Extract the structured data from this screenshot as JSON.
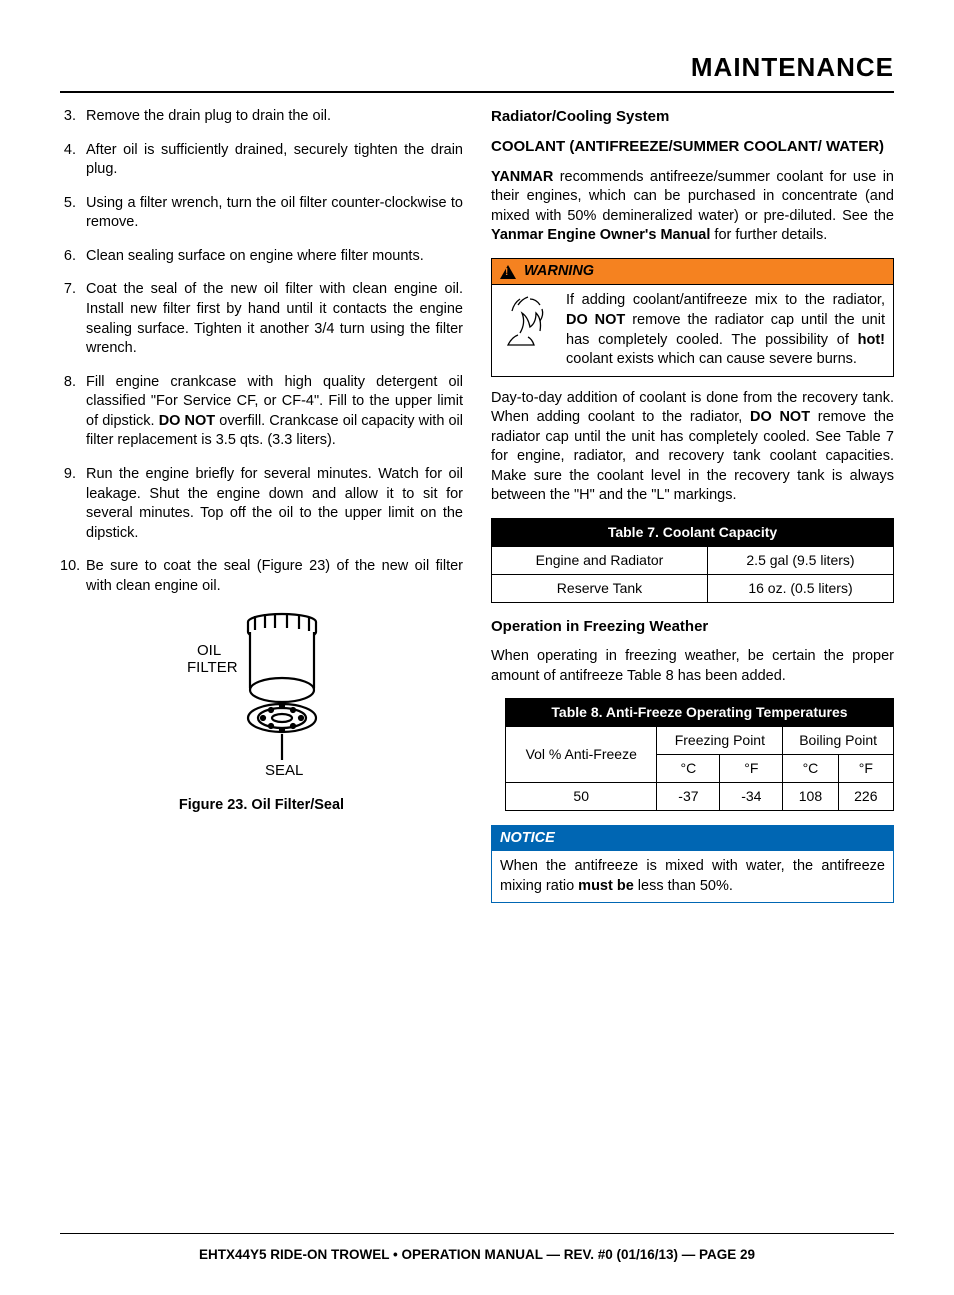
{
  "header": {
    "title": "MAINTENANCE"
  },
  "left": {
    "list_start": 3,
    "steps": [
      "Remove the drain plug to drain the oil.",
      "After oil is sufficiently drained, securely tighten the drain plug.",
      "Using a filter wrench, turn the oil filter counter-clockwise to remove.",
      "Clean sealing surface on engine where filter mounts.",
      "Coat the seal of the new oil filter with clean engine oil. Install new filter first by hand until it contacts the engine sealing surface. Tighten it another 3/4 turn using the filter wrench.",
      {
        "pre": "Fill engine crankcase with high quality detergent oil classified \"For Service CF, or CF-4\". Fill to the upper limit of dipstick. ",
        "bold": "DO NOT",
        "post": " overfill. Crankcase oil capacity with oil filter replacement is 3.5 qts. (3.3 liters)."
      },
      "Run the engine briefly for several minutes. Watch for oil leakage. Shut the engine down and allow it to sit for several minutes. Top off the oil to the upper limit on the dipstick.",
      "Be sure to coat the seal (Figure 23) of the new oil filter with clean engine oil."
    ],
    "figure": {
      "label_top": "OIL\nFILTER",
      "label_bottom": "SEAL",
      "caption": "Figure 23. Oil Filter/Seal"
    }
  },
  "right": {
    "h_radiator": "Radiator/Cooling System",
    "h_coolant": "COOLANT (ANTIFREEZE/SUMMER COOLANT/ WATER)",
    "p1_brandbold": "YANMAR",
    "p1_post": " recommends antifreeze/summer coolant for use in their engines, which can be purchased in concentrate (and mixed with 50% demineralized water) or pre-diluted. See the ",
    "p1_manualbold": "Yanmar Engine Owner's Manual",
    "p1_tail": " for further details.",
    "warning": {
      "label": "WARNING",
      "pre": "If adding coolant/antifreeze mix to the radiator, ",
      "b1": "DO NOT",
      "mid": " remove the radiator cap until the unit has completely cooled. The possibility of ",
      "b2": "hot!",
      "post": " coolant exists which can cause severe burns."
    },
    "p2_pre": "Day-to-day addition of coolant is done from the recovery tank. When adding coolant to the radiator, ",
    "p2_bold": "DO NOT",
    "p2_post": " remove the radiator cap until the unit has completely cooled. See Table 7 for engine, radiator, and recovery tank coolant capacities. Make sure the coolant level in the recovery tank is always between the \"H\" and the \"L\" markings.",
    "table7": {
      "title": "Table 7. Coolant Capacity",
      "rows": [
        [
          "Engine and Radiator",
          "2.5 gal (9.5 liters)"
        ],
        [
          "Reserve Tank",
          "16 oz. (0.5 liters)"
        ]
      ]
    },
    "h_freezing": "Operation in Freezing Weather",
    "p3": "When operating in freezing weather, be certain the proper amount of antifreeze Table 8 has been added.",
    "table8": {
      "title": "Table 8. Anti-Freeze Operating Temperatures",
      "col0": "Vol % Anti-Freeze",
      "group1": "Freezing Point",
      "group2": "Boiling Point",
      "unit_c": "°C",
      "unit_f": "°F",
      "row": [
        "50",
        "-37",
        "-34",
        "108",
        "226"
      ]
    },
    "notice": {
      "label": "NOTICE",
      "pre": "When the antifreeze is mixed with water, the antifreeze mixing ratio ",
      "bold": "must be",
      "post": " less than 50%."
    }
  },
  "footer": "EHTX44Y5 RIDE-ON TROWEL • OPERATION MANUAL — REV. #0 (01/16/13) — PAGE 29"
}
